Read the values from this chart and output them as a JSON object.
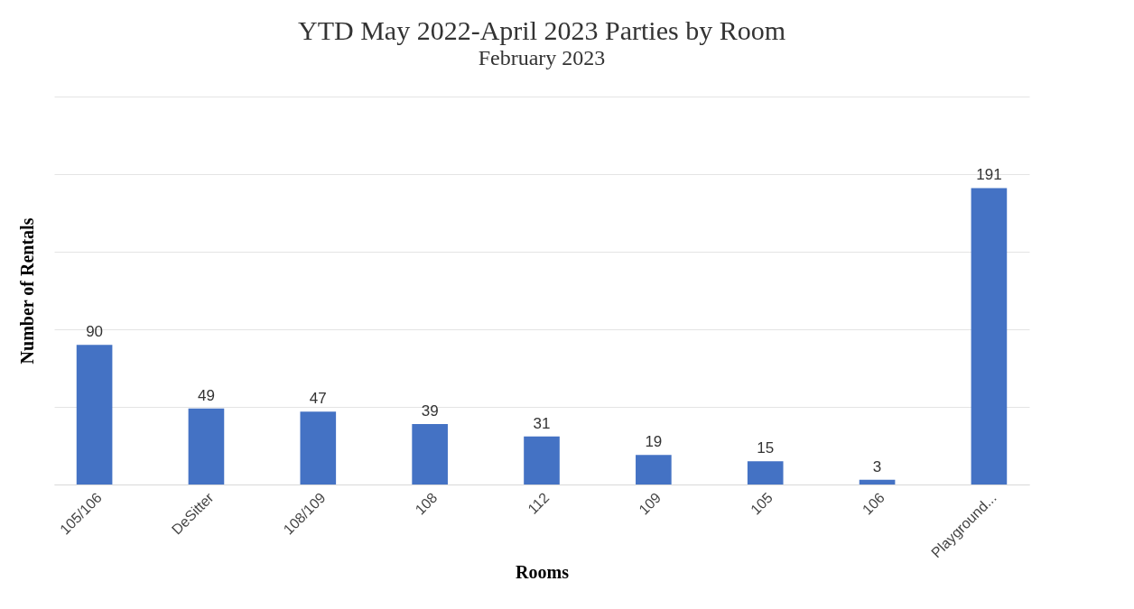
{
  "chart_data": {
    "type": "bar",
    "title": "YTD May 2022-April 2023 Parties by Room",
    "subtitle": "February 2023",
    "xlabel": "Rooms",
    "ylabel": "Number of Rentals",
    "categories": [
      "105/106",
      "DeSitter",
      "108/109",
      "108",
      "112",
      "109",
      "105",
      "106",
      "Playground..."
    ],
    "values": [
      90,
      49,
      47,
      39,
      31,
      19,
      15,
      3,
      191
    ],
    "color": "#4472c4",
    "ylim": [
      0,
      250
    ],
    "yticks": [
      {
        "value": 0,
        "label": null
      },
      {
        "value": 50,
        "label": null
      },
      {
        "value": 100,
        "label": null
      },
      {
        "value": 150,
        "label": null
      },
      {
        "value": 200,
        "label": null
      },
      {
        "value": 250,
        "label": null
      }
    ],
    "tick_labels": "x",
    "grid": "y",
    "data_labels": true
  }
}
